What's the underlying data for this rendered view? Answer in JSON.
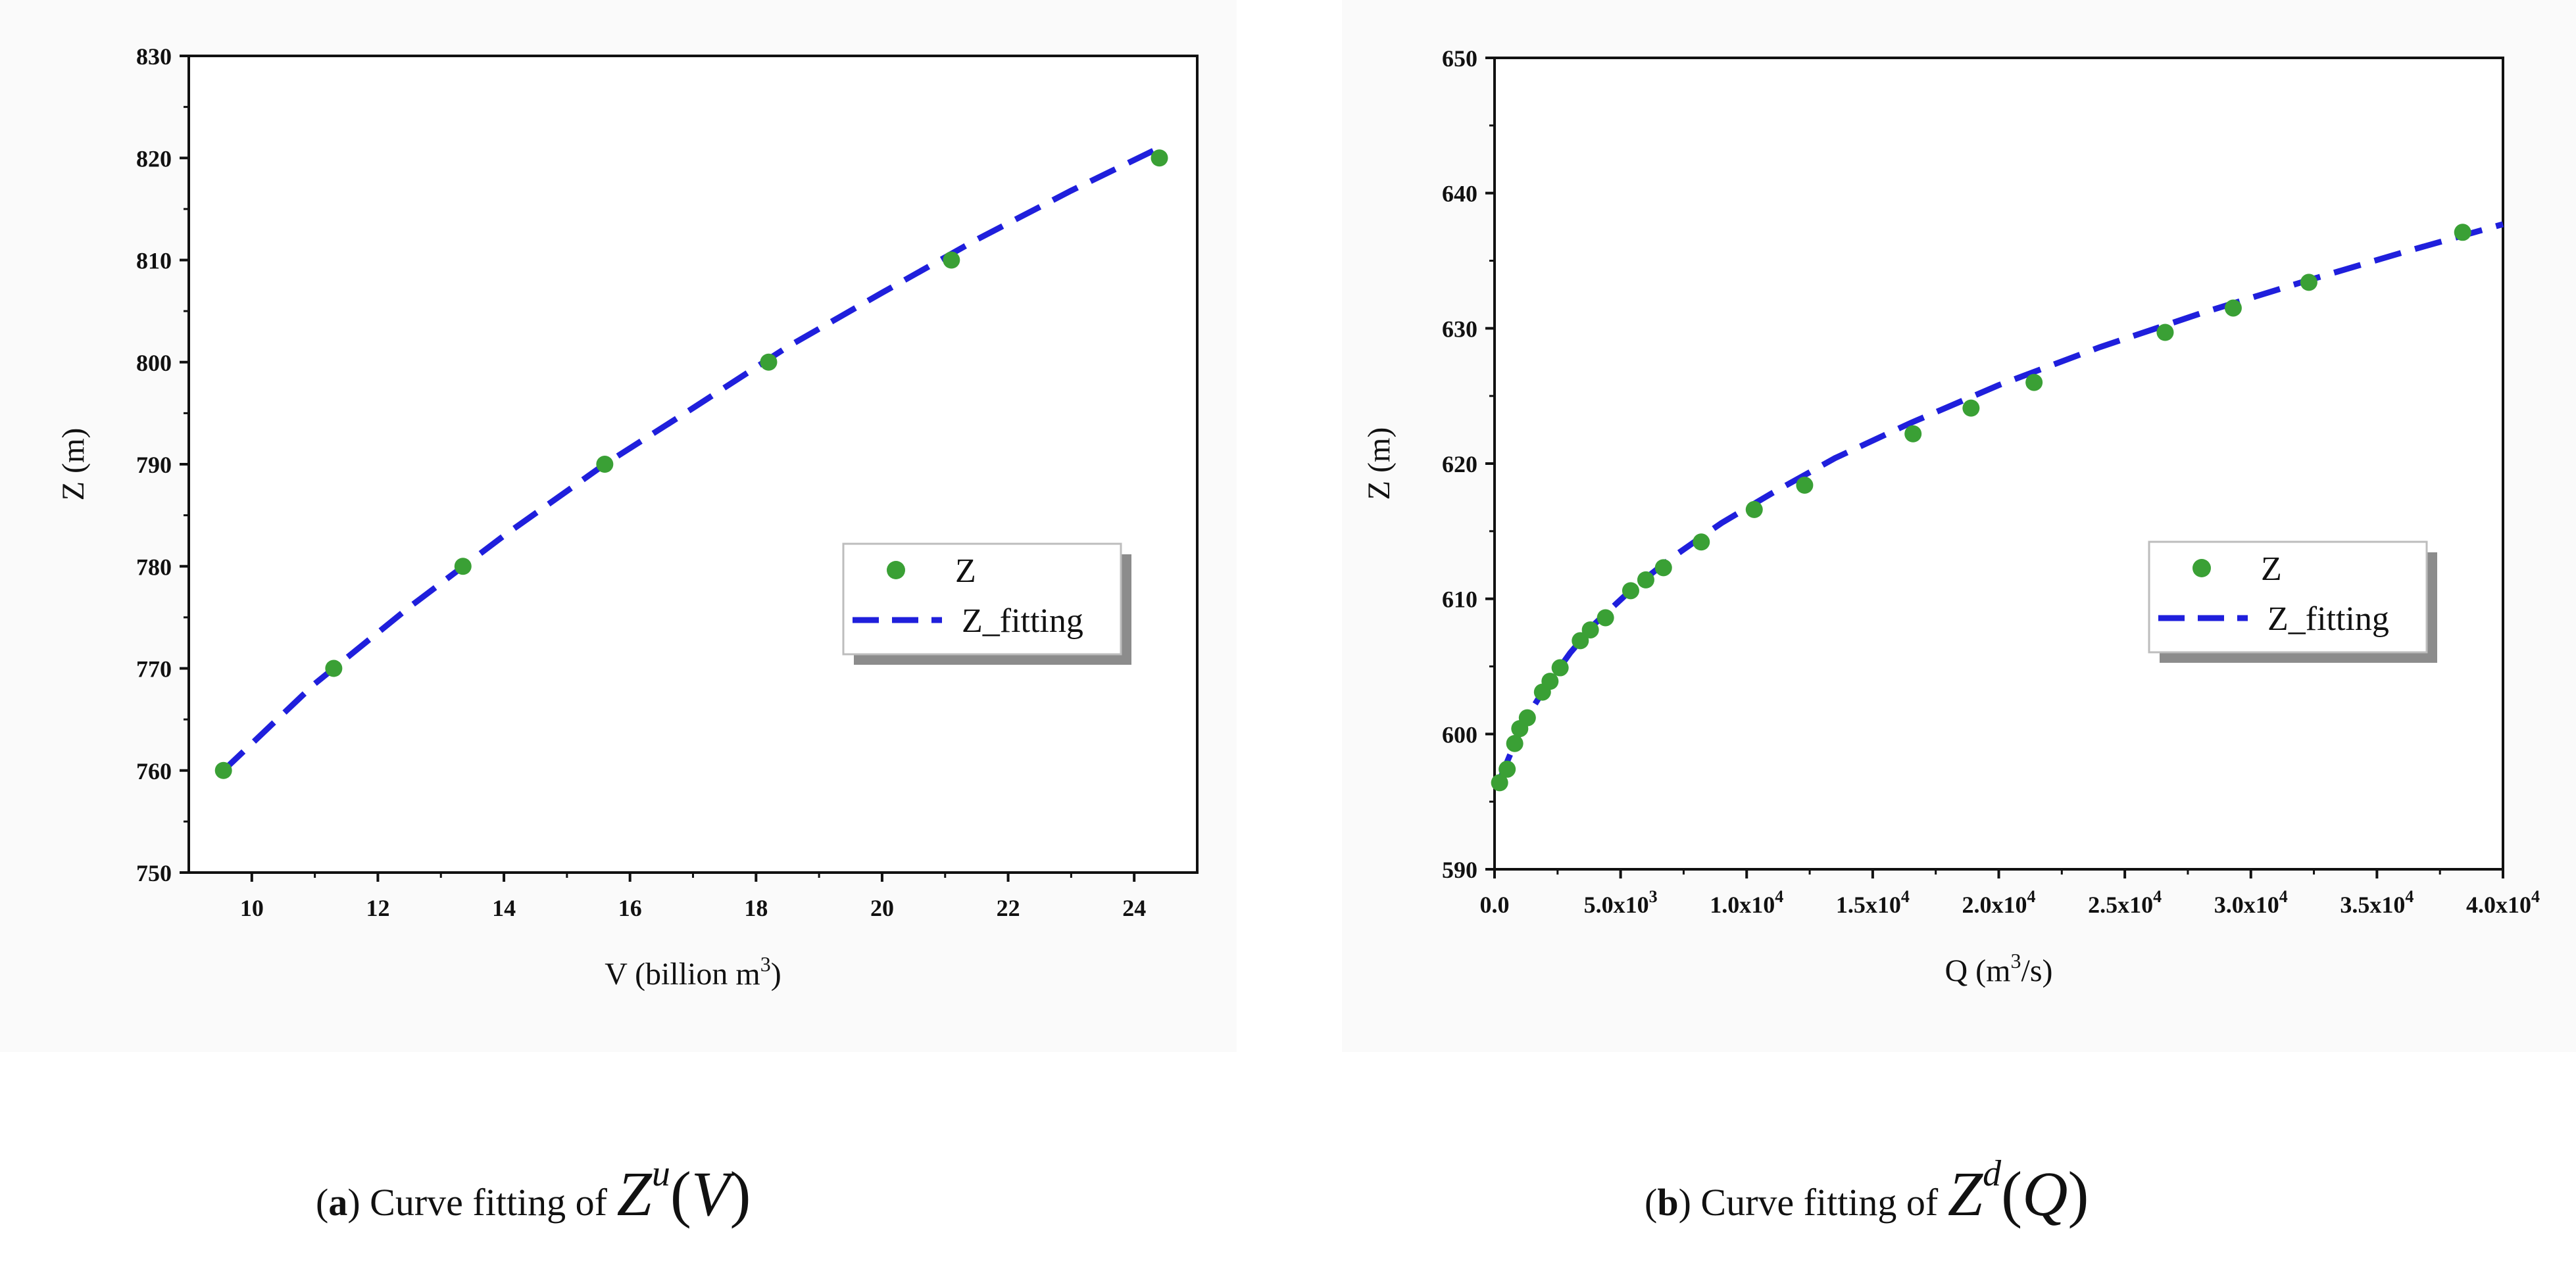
{
  "chart_data": [
    {
      "type": "scatter",
      "panel": "a",
      "xlabel": "V (billion m",
      "xlabel_sup": "3",
      "xlabel_end": ")",
      "ylabel": "Z (m)",
      "xlim": [
        9,
        25
      ],
      "ylim": [
        750,
        830
      ],
      "xticks": [
        "10",
        "12",
        "14",
        "16",
        "18",
        "20",
        "22",
        "24"
      ],
      "xtick_values": [
        10,
        12,
        14,
        16,
        18,
        20,
        22,
        24
      ],
      "yticks": [
        "750",
        "760",
        "770",
        "780",
        "790",
        "800",
        "810",
        "820",
        "830"
      ],
      "ytick_values": [
        750,
        760,
        770,
        780,
        790,
        800,
        810,
        820,
        830
      ],
      "series": [
        {
          "name": "Z",
          "kind": "scatter",
          "color": "#3aa035",
          "x": [
            9.55,
            11.3,
            13.35,
            15.6,
            18.2,
            21.1,
            24.4
          ],
          "y": [
            760,
            770,
            780,
            790,
            800,
            810,
            820
          ]
        },
        {
          "name": "Z_fitting",
          "kind": "line",
          "color": "#1f1fdc",
          "x": [
            9.55,
            11.0,
            12.5,
            14.0,
            15.6,
            17.0,
            18.5,
            20.0,
            21.5,
            23.0,
            24.4
          ],
          "y": [
            760,
            768.5,
            776.0,
            783.0,
            790.0,
            795.5,
            801.5,
            806.8,
            812.0,
            816.8,
            821.0
          ]
        }
      ],
      "legend": [
        "Z",
        "Z_fitting"
      ],
      "legend_position": "center-right",
      "caption_label": "a",
      "caption_text": "Curve fitting of",
      "caption_math_base": "Z",
      "caption_math_sup": "u",
      "caption_math_arg": "V"
    },
    {
      "type": "scatter",
      "panel": "b",
      "xlabel": "Q (m",
      "xlabel_sup": "3",
      "xlabel_end": "/s)",
      "ylabel": "Z (m)",
      "xlim": [
        0,
        40000
      ],
      "ylim": [
        590,
        650
      ],
      "xticks": [
        {
          "base": "0.0",
          "exp": ""
        },
        {
          "base": "5.0x10",
          "exp": "3"
        },
        {
          "base": "1.0x10",
          "exp": "4"
        },
        {
          "base": "1.5x10",
          "exp": "4"
        },
        {
          "base": "2.0x10",
          "exp": "4"
        },
        {
          "base": "2.5x10",
          "exp": "4"
        },
        {
          "base": "3.0x10",
          "exp": "4"
        },
        {
          "base": "3.5x10",
          "exp": "4"
        },
        {
          "base": "4.0x10",
          "exp": "4"
        }
      ],
      "xtick_values": [
        0,
        5000,
        10000,
        15000,
        20000,
        25000,
        30000,
        35000,
        40000
      ],
      "yticks": [
        "590",
        "600",
        "610",
        "620",
        "630",
        "640",
        "650"
      ],
      "ytick_values": [
        590,
        600,
        610,
        620,
        630,
        640,
        650
      ],
      "series": [
        {
          "name": "Z",
          "kind": "scatter",
          "color": "#3aa035",
          "x": [
            200,
            500,
            800,
            1000,
            1300,
            1900,
            2200,
            2600,
            3400,
            3800,
            4400,
            5400,
            6000,
            6700,
            8200,
            10300,
            12300,
            16600,
            18900,
            21400,
            26600,
            29300,
            32300,
            38400
          ],
          "y": [
            596.4,
            597.4,
            599.3,
            600.4,
            601.2,
            603.1,
            603.9,
            604.9,
            606.9,
            607.7,
            608.6,
            610.6,
            611.4,
            612.3,
            614.2,
            616.6,
            618.4,
            622.2,
            624.1,
            626.0,
            629.7,
            631.5,
            633.4,
            637.1
          ]
        },
        {
          "name": "Z_fitting",
          "kind": "line",
          "color": "#1f1fdc",
          "x": [
            200,
            600,
            1200,
            2000,
            3000,
            4000,
            5500,
            7000,
            9000,
            11000,
            13500,
            16500,
            20000,
            24000,
            28000,
            32000,
            36000,
            40000
          ],
          "y": [
            596.6,
            598.4,
            601.0,
            603.4,
            606.0,
            608.2,
            610.8,
            613.0,
            615.6,
            617.8,
            620.4,
            623.0,
            625.8,
            628.6,
            631.1,
            633.4,
            635.6,
            637.7
          ]
        }
      ],
      "legend": [
        "Z",
        "Z_fitting"
      ],
      "legend_position": "center-right",
      "caption_label": "b",
      "caption_text": "Curve fitting of",
      "caption_math_base": "Z",
      "caption_math_sup": "d",
      "caption_math_arg": "Q"
    }
  ]
}
